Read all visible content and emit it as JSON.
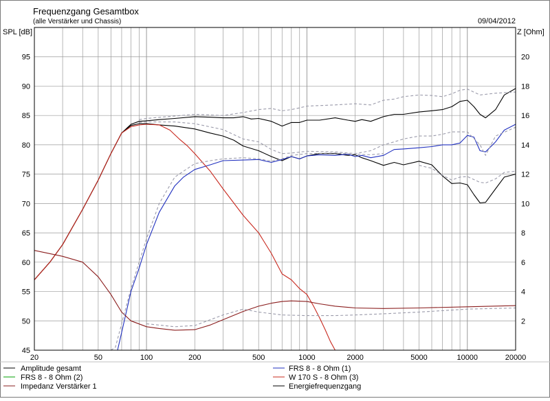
{
  "chart_data": {
    "type": "line",
    "title": "Frequenzgang Gesamtbox",
    "subtitle": "(alle Verstärker und Chassis)",
    "date": "09/04/2012",
    "ylabel": "SPL [dB]",
    "y2label": "Z [Ohm]",
    "x_scale": "log",
    "xlim": [
      20,
      20000
    ],
    "ylim": [
      45,
      100
    ],
    "y2lim": [
      0,
      22
    ],
    "grid": true,
    "x_ticks": [
      20,
      50,
      100,
      200,
      500,
      1000,
      2000,
      5000,
      10000,
      20000
    ],
    "y_ticks": [
      45,
      50,
      55,
      60,
      65,
      70,
      75,
      80,
      85,
      90,
      95
    ],
    "y2_ticks": [
      2,
      4,
      6,
      8,
      10,
      12,
      14,
      16,
      18,
      20
    ],
    "colors": {
      "black": "#000000",
      "blue": "#1f2fbf",
      "red": "#c8281e",
      "darkred": "#8a1c1c",
      "green": "#00a000",
      "grid": "#9a9a9a",
      "dashed": "#9a9aaa"
    },
    "legend_placement": "bottom",
    "legend": [
      {
        "label": "Amplitude gesamt",
        "color": "#000000"
      },
      {
        "label": "FRS 8 - 8 Ohm (1)",
        "color": "#1f2fbf"
      },
      {
        "label": "FRS 8 - 8 Ohm (2)",
        "color": "#00a000"
      },
      {
        "label": "W 170 S - 8 Ohm (3)",
        "color": "#c8281e"
      },
      {
        "label": "Impedanz Verstärker 1",
        "color": "#8a1c1c"
      },
      {
        "label": "Energiefrequenzgang",
        "color": "#000000"
      }
    ],
    "series": [
      {
        "legend": "Energiefrequenzgang",
        "axis": "y",
        "color": "#000000",
        "dash": false,
        "x": [
          20,
          25,
          30,
          40,
          50,
          60,
          70,
          80,
          90,
          100,
          120,
          150,
          200,
          250,
          300,
          350,
          400,
          450,
          500,
          600,
          700,
          800,
          900,
          1000,
          1200,
          1500,
          1800,
          2000,
          2200,
          2500,
          3000,
          3500,
          4000,
          5000,
          6000,
          7000,
          8000,
          9000,
          10000,
          11000,
          12000,
          13000,
          15000,
          17000,
          20000
        ],
        "y": [
          57,
          60,
          63,
          69,
          74,
          78.5,
          82,
          83.5,
          84,
          84.1,
          84.3,
          84.5,
          84.8,
          84.7,
          84.6,
          84.6,
          84.8,
          84.4,
          84.5,
          84,
          83.2,
          83.8,
          83.8,
          84.2,
          84.2,
          84.6,
          84.2,
          84,
          84.3,
          84,
          84.8,
          85.2,
          85.2,
          85.6,
          85.8,
          86,
          86.5,
          87.4,
          87.6,
          86.5,
          85.2,
          84.6,
          86,
          88.5,
          89.6
        ]
      },
      {
        "legend": "Amplitude gesamt",
        "axis": "y",
        "color": "#000000",
        "dash": false,
        "x": [
          20,
          25,
          30,
          40,
          50,
          60,
          70,
          80,
          90,
          100,
          120,
          150,
          200,
          250,
          300,
          350,
          400,
          500,
          600,
          700,
          800,
          900,
          1000,
          1200,
          1500,
          1800,
          2000,
          2200,
          2500,
          3000,
          3500,
          4000,
          5000,
          6000,
          7000,
          8000,
          9000,
          10000,
          11000,
          12000,
          13000,
          15000,
          17000,
          20000
        ],
        "y": [
          57,
          60,
          63,
          69,
          74,
          78.5,
          82,
          83.3,
          83.6,
          83.6,
          83.4,
          83.2,
          82.7,
          82,
          81.5,
          80.8,
          79.8,
          79,
          78,
          77.3,
          78,
          77.6,
          78.1,
          78.5,
          78.5,
          78.2,
          78.3,
          77.8,
          77.3,
          76.5,
          77,
          76.6,
          77.2,
          76.6,
          74.7,
          73.4,
          73.5,
          73.2,
          71.5,
          70.1,
          70.2,
          72.5,
          74.5,
          75
        ]
      },
      {
        "legend": "FRS 8 - 8 Ohm (1)",
        "axis": "y",
        "color": "#1f2fbf",
        "dash": false,
        "x": [
          20,
          60,
          66,
          70,
          80,
          90,
          100,
          120,
          150,
          170,
          200,
          250,
          300,
          400,
          500,
          600,
          700,
          800,
          900,
          1000,
          1200,
          1500,
          1800,
          2000,
          2200,
          2500,
          3000,
          3500,
          4000,
          5000,
          6000,
          7000,
          8000,
          9000,
          10000,
          11000,
          12000,
          13000,
          15000,
          17000,
          20000
        ],
        "y": [
          45,
          45,
          45,
          48,
          55,
          59,
          63,
          68.5,
          73,
          74.5,
          75.8,
          76.6,
          77.3,
          77.4,
          77.5,
          77,
          77.5,
          78,
          77.6,
          78.1,
          78.3,
          78.2,
          78.4,
          78,
          78.2,
          77.8,
          78.2,
          79.2,
          79.3,
          79.5,
          79.7,
          80,
          80,
          80.3,
          81.6,
          81.3,
          79,
          78.8,
          80.5,
          82.5,
          83.5
        ]
      },
      {
        "legend": "W 170 S - 8 Ohm (3)",
        "axis": "y",
        "color": "#c8281e",
        "dash": false,
        "x": [
          20,
          25,
          30,
          40,
          50,
          60,
          70,
          80,
          90,
          100,
          120,
          140,
          160,
          180,
          200,
          250,
          300,
          400,
          500,
          600,
          700,
          800,
          900,
          1000,
          1100,
          1200,
          1300,
          1400,
          1500,
          1600,
          2000,
          5000,
          10000,
          20000
        ],
        "y": [
          57,
          60,
          63,
          69,
          74,
          78.5,
          82,
          83.1,
          83.4,
          83.5,
          83.4,
          82.5,
          81,
          79.8,
          78.5,
          75.5,
          72.5,
          68,
          65,
          61.5,
          58,
          57,
          55.5,
          54.5,
          52.5,
          50.5,
          48.5,
          46.5,
          45,
          45,
          45,
          45,
          45,
          45
        ]
      },
      {
        "legend": "Impedanz Verstärker 1",
        "axis": "y",
        "color": "#8a1c1c",
        "dash": false,
        "x": [
          20,
          30,
          40,
          50,
          60,
          70,
          80,
          100,
          120,
          150,
          200,
          250,
          300,
          400,
          500,
          600,
          700,
          800,
          1000,
          1200,
          1500,
          2000,
          3000,
          5000,
          10000,
          20000
        ],
        "y": [
          62,
          61,
          60,
          57.5,
          54.5,
          51.5,
          50,
          49,
          48.7,
          48.4,
          48.5,
          49.3,
          50.2,
          51.6,
          52.5,
          53,
          53.3,
          53.4,
          53.3,
          52.9,
          52.5,
          52.2,
          52.1,
          52.2,
          52.4,
          52.6
        ]
      },
      {
        "legend": "",
        "axis": "y",
        "color": "#9a9aaa",
        "dash": true,
        "x": [
          90,
          100,
          150,
          200,
          300,
          400,
          500,
          600,
          700,
          800,
          900,
          1000,
          1500,
          2000,
          2500,
          3000,
          3500,
          4000,
          5000,
          6000,
          7000,
          8000,
          9000,
          10000,
          12000,
          15000,
          20000
        ],
        "y": [
          84.3,
          84.5,
          84.9,
          85.2,
          85,
          85.5,
          86,
          86.2,
          85.8,
          86,
          86.3,
          86.6,
          86.8,
          87,
          86.8,
          87.6,
          87.8,
          88.2,
          88.5,
          88.4,
          88.2,
          88.7,
          89.3,
          89.5,
          88.5,
          88.8,
          89
        ]
      },
      {
        "legend": "",
        "axis": "y",
        "color": "#9a9aaa",
        "dash": true,
        "x": [
          90,
          100,
          150,
          200,
          300,
          400,
          500,
          600,
          700,
          800,
          1000,
          1500,
          2000,
          2500,
          3000,
          3500,
          4000,
          5000,
          6000,
          7000,
          8000,
          9000,
          10000,
          12000,
          13000,
          15000,
          20000
        ],
        "y": [
          83.8,
          83.9,
          83.9,
          83.6,
          82.6,
          81,
          80.5,
          79.2,
          78.5,
          78.6,
          78.9,
          78.8,
          78.5,
          79,
          80,
          80.5,
          81,
          81.5,
          81.5,
          81.8,
          82.2,
          82.2,
          82.2,
          80,
          78.2,
          81.5,
          83
        ]
      },
      {
        "legend": "",
        "axis": "y",
        "color": "#9a9aaa",
        "dash": true,
        "x": [
          60,
          64,
          70,
          80,
          90,
          100,
          120,
          150,
          200,
          250,
          300,
          400,
          500,
          600,
          700,
          800,
          1000,
          1500,
          2000,
          2500,
          3000
        ],
        "y": [
          45,
          45.5,
          49.5,
          55.5,
          60,
          64,
          70,
          74.5,
          76.8,
          77.3,
          77.6,
          77.8,
          77.6,
          77.2,
          77.6,
          78.2,
          78.5,
          78.6,
          78.4,
          78.3,
          78.5
        ]
      },
      {
        "legend": "",
        "axis": "y",
        "color": "#9a9aaa",
        "dash": true,
        "x": [
          5000,
          6000,
          7000,
          8000,
          9000,
          10000,
          12000,
          13000,
          15000,
          17000,
          20000
        ],
        "y": [
          76.5,
          76,
          74.8,
          74,
          74.5,
          74.6,
          73.6,
          73.5,
          74.2,
          75.3,
          75.5
        ]
      },
      {
        "legend": "",
        "axis": "y",
        "color": "#9a9aaa",
        "dash": true,
        "x": [
          100,
          150,
          200,
          300,
          400,
          500,
          700,
          1000,
          1500,
          2000,
          3000,
          5000,
          10000,
          20000
        ],
        "y": [
          49.5,
          49,
          49.2,
          51,
          52,
          51.5,
          51,
          50.9,
          50.9,
          51,
          51.2,
          51.5,
          52,
          52.2
        ]
      }
    ]
  }
}
